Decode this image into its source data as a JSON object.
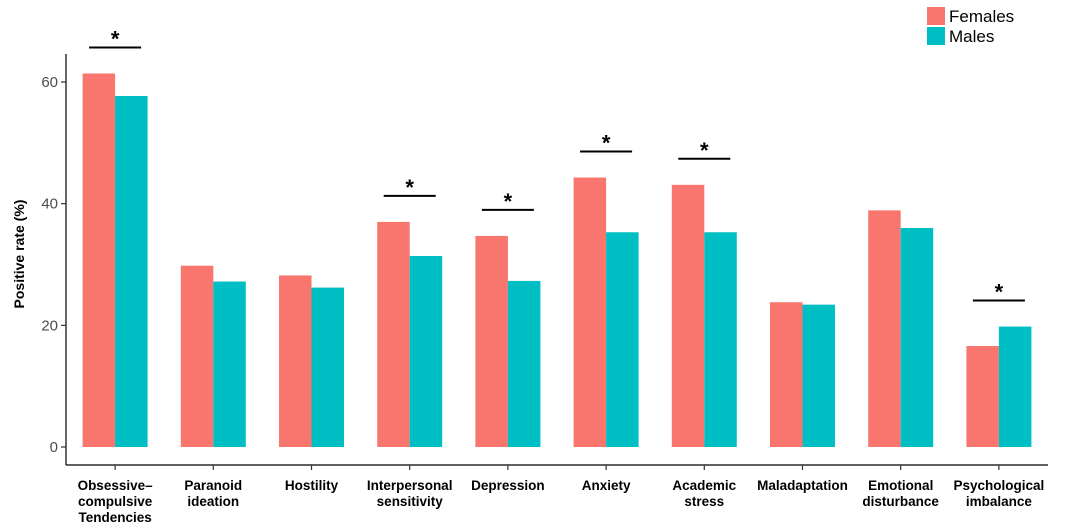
{
  "chart_data": {
    "type": "bar",
    "title": "",
    "xlabel": "",
    "ylabel": "Positive rate (%)",
    "ylim": [
      0,
      65
    ],
    "yticks": [
      0,
      20,
      40,
      60
    ],
    "grid": false,
    "legend_position": "top-right",
    "categories": [
      [
        "Obsessive–",
        "compulsive",
        "Tendencies"
      ],
      [
        "Paranoid",
        "ideation"
      ],
      [
        "Hostility"
      ],
      [
        "Interpersonal",
        "sensitivity"
      ],
      [
        "Depression"
      ],
      [
        "Anxiety"
      ],
      [
        "Academic",
        "stress"
      ],
      [
        "Maladaptation"
      ],
      [
        "Emotional",
        "disturbance"
      ],
      [
        "Psychological",
        "imbalance"
      ]
    ],
    "series": [
      {
        "name": "Females",
        "color": "#F8766D",
        "values": [
          61.4,
          29.8,
          28.2,
          37.0,
          34.7,
          44.3,
          43.1,
          23.8,
          38.9,
          16.6
        ]
      },
      {
        "name": "Males",
        "color": "#00BFC4",
        "values": [
          57.7,
          27.2,
          26.2,
          31.4,
          27.3,
          35.3,
          35.3,
          23.4,
          36.0,
          19.8
        ]
      }
    ],
    "significance": [
      {
        "category_index": 0,
        "label": "*"
      },
      {
        "category_index": 3,
        "label": "*"
      },
      {
        "category_index": 4,
        "label": "*"
      },
      {
        "category_index": 5,
        "label": "*"
      },
      {
        "category_index": 6,
        "label": "*"
      },
      {
        "category_index": 9,
        "label": "*"
      }
    ]
  }
}
